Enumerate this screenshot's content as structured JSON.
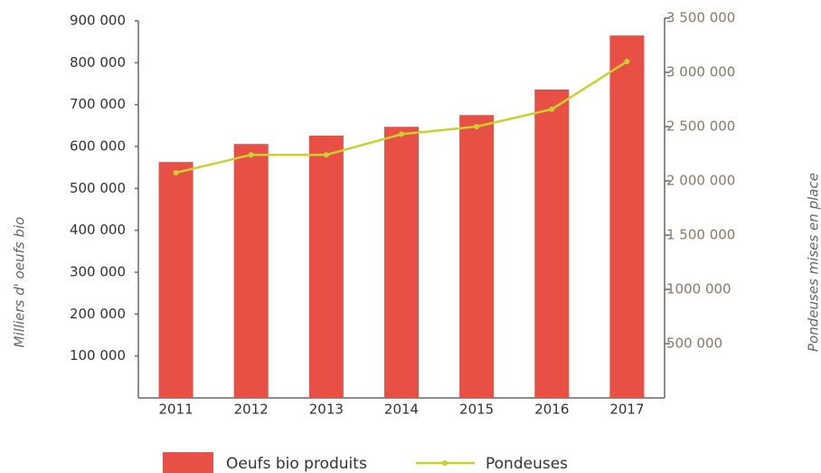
{
  "chart_data": {
    "type": "bar",
    "categories": [
      "2011",
      "2012",
      "2013",
      "2014",
      "2015",
      "2016",
      "2017"
    ],
    "series": [
      {
        "name": "Oeufs bio produits",
        "color": "#e84f45",
        "type": "bar",
        "values": [
          563000,
          606000,
          626000,
          647000,
          675000,
          736000,
          865000
        ]
      },
      {
        "name": "Pondeuses",
        "color": "#c8d22a",
        "type": "line",
        "axis": "y2",
        "values": [
          2075000,
          2240000,
          2240000,
          2430000,
          2500000,
          2660000,
          3100000
        ]
      }
    ],
    "ylabel": "Milliers d' oeufs bio",
    "y2label": "Pondeuses mises en place",
    "ylim": [
      0,
      900000
    ],
    "yticks": [
      {
        "value": 100000,
        "label": "100 000"
      },
      {
        "value": 200000,
        "label": "200 000"
      },
      {
        "value": 300000,
        "label": "300 000"
      },
      {
        "value": 400000,
        "label": "400 000"
      },
      {
        "value": 500000,
        "label": "500 000"
      },
      {
        "value": 600000,
        "label": "600 000"
      },
      {
        "value": 700000,
        "label": "700 000"
      },
      {
        "value": 800000,
        "label": "800 000"
      },
      {
        "value": 900000,
        "label": "900 000"
      }
    ],
    "y2lim": [
      0,
      3500000
    ],
    "y2ticks": [
      {
        "value": 500000,
        "label": "500 000"
      },
      {
        "value": 1000000,
        "label": "1000 000"
      },
      {
        "value": 1500000,
        "label": "1 500 000"
      },
      {
        "value": 2000000,
        "label": "2 000 000"
      },
      {
        "value": 2500000,
        "label": "2 500 000"
      },
      {
        "value": 3000000,
        "label": "3 000 000"
      },
      {
        "value": 3500000,
        "label": "3 500 000"
      }
    ],
    "grid": false,
    "legend": "bottom"
  }
}
